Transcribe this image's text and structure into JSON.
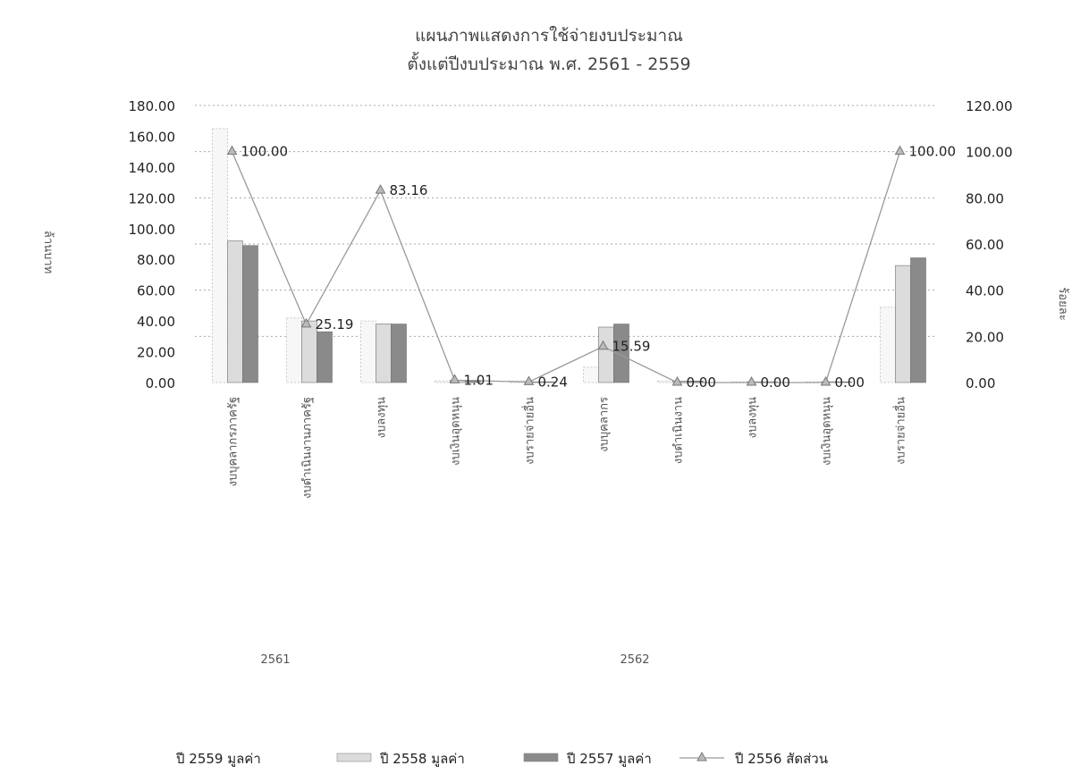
{
  "chart_data": {
    "type": "bar",
    "title": "แผนภาพแสดงการใช้จ่ายงบประมาณ",
    "subtitle": "ตั้งแต่ปีงบประมาณ พ.ศ. 2561 - 2559",
    "ylabel_left": "ล้านบาท",
    "ylabel_right": "ร้อยละ",
    "y_left_ticks": [
      "180.00",
      "160.00",
      "140.00",
      "120.00",
      "100.00",
      "80.00",
      "60.00",
      "40.00",
      "20.00",
      "0.00"
    ],
    "y_right_ticks": [
      "120.00",
      "100.00",
      "80.00",
      "60.00",
      "40.00",
      "20.00",
      "0.00"
    ],
    "ylim_left": [
      0,
      180
    ],
    "ylim_right": [
      0,
      120
    ],
    "grid": true,
    "legend_position": "bottom",
    "categories": [
      "งบบุคลากรภาครัฐ",
      "งบดำเนินงานภาครัฐ",
      "งบลงทุน",
      "งบเงินอุดหนุน",
      "งบรายจ่ายอื่น",
      "งบบุคลากร",
      "งบดำเนินงาน",
      "งบลงทุน",
      "งบเงินอุดหนุน",
      "งบรายจ่ายอื่น"
    ],
    "groups": [
      {
        "label": "2561",
        "span": [
          0,
          4
        ]
      },
      {
        "label": "2562",
        "span": [
          5,
          9
        ]
      }
    ],
    "series": [
      {
        "name": "ปี 2559 มูลค่า",
        "axis": "left",
        "kind": "bar",
        "color": "#f7f7f7",
        "values": [
          165,
          42,
          40,
          1,
          1,
          10,
          1,
          0.5,
          0.5,
          49
        ]
      },
      {
        "name": "ปี 2558 มูลค่า",
        "axis": "left",
        "kind": "bar",
        "color": "#dcdcdc",
        "values": [
          92,
          40,
          38,
          1.5,
          0.5,
          36,
          1,
          0.5,
          0.5,
          76
        ]
      },
      {
        "name": "ปี 2557 มูลค่า",
        "axis": "left",
        "kind": "bar",
        "color": "#8a8a8a",
        "values": [
          89,
          33,
          38,
          1.5,
          0.5,
          38,
          1,
          0.5,
          0.5,
          81
        ]
      },
      {
        "name": "ปี 2556 สัดส่วน",
        "axis": "right",
        "kind": "line",
        "color": "#999999",
        "values": [
          100.0,
          25.19,
          83.16,
          1.01,
          0.24,
          15.59,
          0.0,
          0.0,
          0.0,
          100.0
        ],
        "labels": [
          "100.00",
          "25.19",
          "83.16",
          "1.01",
          "0.24",
          "15.59",
          "0.00",
          "0.00",
          "0.00",
          "100.00"
        ]
      }
    ],
    "colors": {
      "grid": "#aaaaaa",
      "line": "#999999",
      "marker": "#777777"
    }
  }
}
